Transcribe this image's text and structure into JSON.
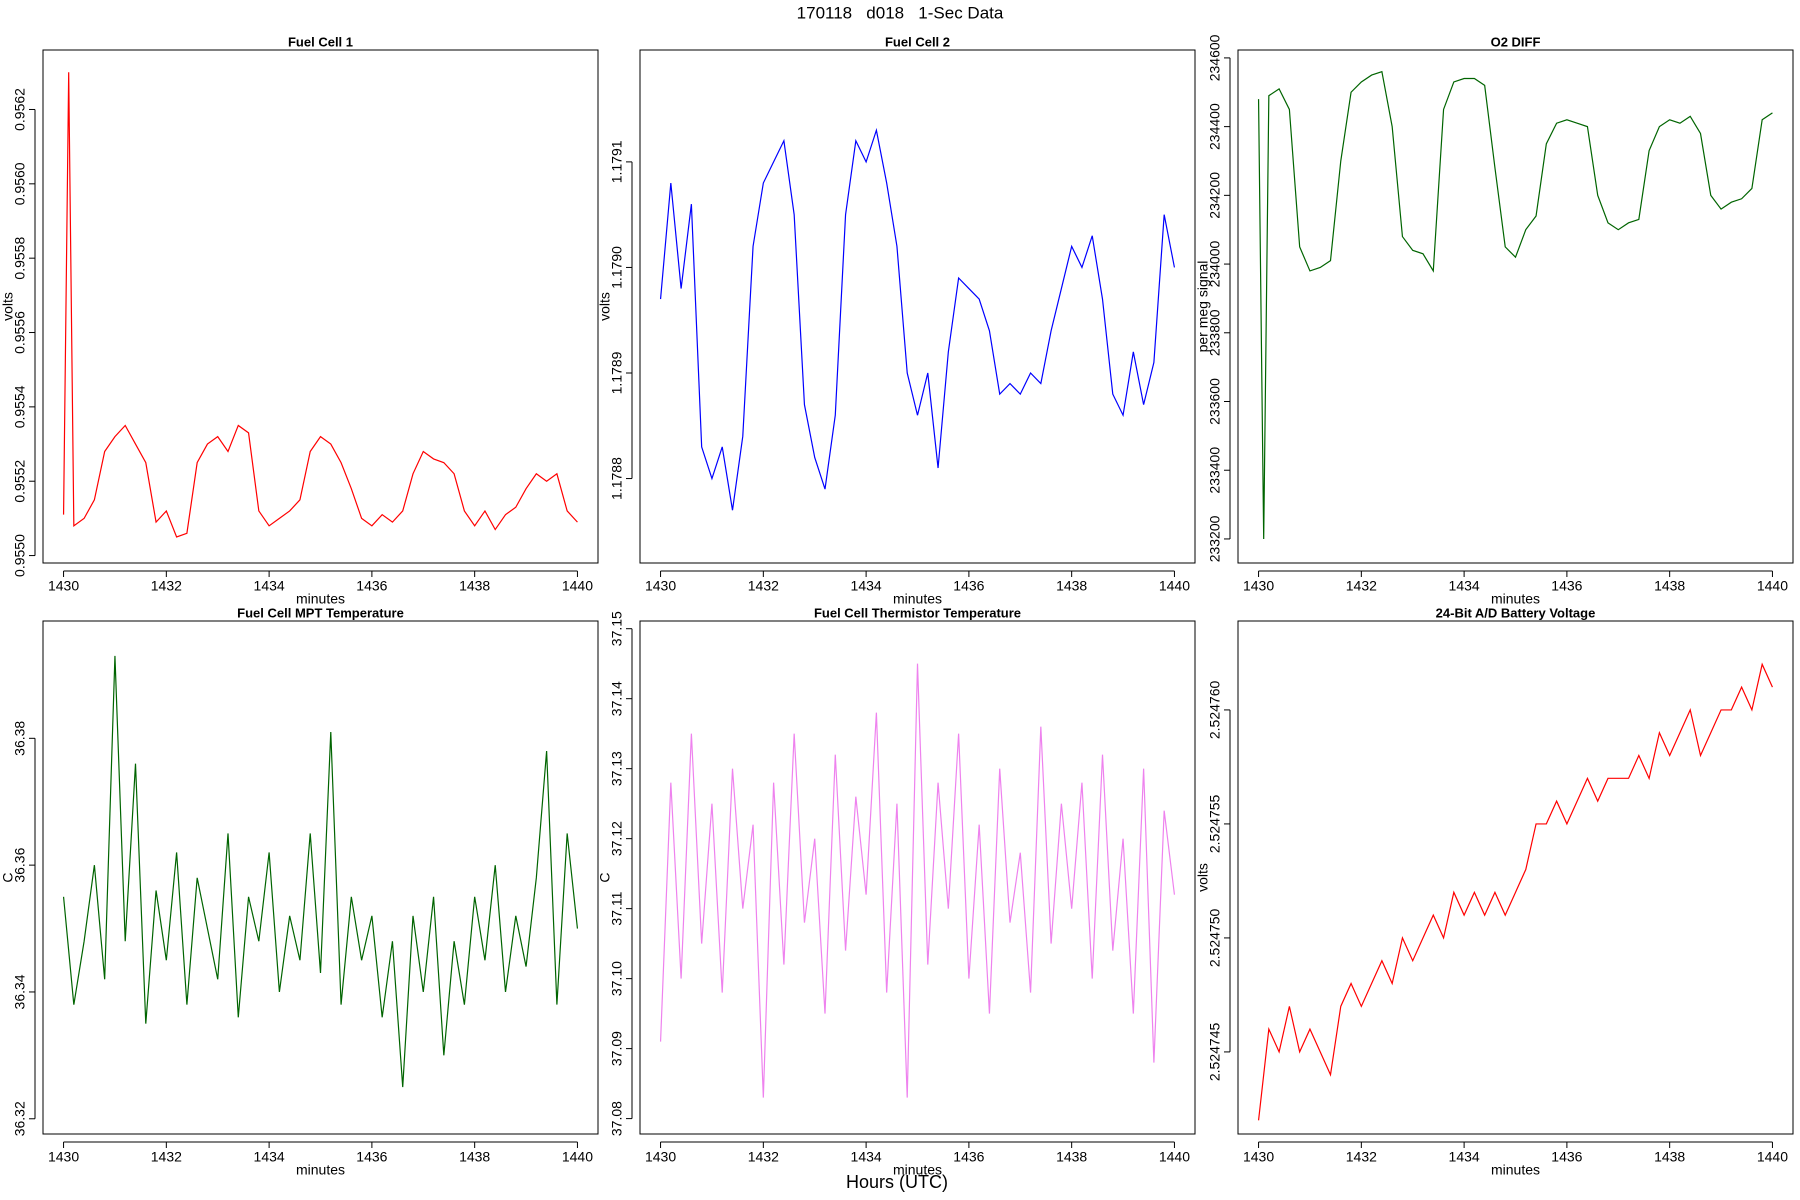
{
  "title": "170118   d018   1-Sec Data",
  "xlabel": "Hours (UTC)",
  "chart_data": [
    {
      "type": "line",
      "title": "Fuel Cell 1",
      "xlabel": "minutes",
      "ylabel": "volts",
      "color": "#ff0000",
      "xlim": [
        1429.6,
        1440.4
      ],
      "xticks": [
        1430,
        1432,
        1434,
        1436,
        1438,
        1440
      ],
      "ylim": [
        0.95498,
        0.95636
      ],
      "yticks": [
        {
          "value": 0.955,
          "label": "0.9550"
        },
        0.9552,
        0.9554,
        0.9556,
        0.9558,
        {
          "value": 0.956,
          "label": "0.9560"
        },
        0.9562
      ],
      "x": [
        1430,
        1430.1,
        1430.2,
        1430.4,
        1430.6,
        1430.8,
        1431,
        1431.2,
        1431.4,
        1431.6,
        1431.8,
        1432,
        1432.2,
        1432.4,
        1432.6,
        1432.8,
        1433,
        1433.2,
        1433.4,
        1433.6,
        1433.8,
        1434,
        1434.2,
        1434.4,
        1434.6,
        1434.8,
        1435,
        1435.2,
        1435.4,
        1435.6,
        1435.8,
        1436,
        1436.2,
        1436.4,
        1436.6,
        1436.8,
        1437,
        1437.2,
        1437.4,
        1437.6,
        1437.8,
        1438,
        1438.2,
        1438.4,
        1438.6,
        1438.8,
        1439,
        1439.2,
        1439.4,
        1439.6,
        1439.8,
        1440
      ],
      "values": [
        0.95511,
        0.9563,
        0.95508,
        0.9551,
        0.95515,
        0.95528,
        0.95532,
        0.95535,
        0.9553,
        0.95525,
        0.95509,
        0.95512,
        0.95505,
        0.95506,
        0.95525,
        0.9553,
        0.95532,
        0.95528,
        0.95535,
        0.95533,
        0.95512,
        0.95508,
        0.9551,
        0.95512,
        0.95515,
        0.95528,
        0.95532,
        0.9553,
        0.95525,
        0.95518,
        0.9551,
        0.95508,
        0.95511,
        0.95509,
        0.95512,
        0.95522,
        0.95528,
        0.95526,
        0.95525,
        0.95522,
        0.95512,
        0.95508,
        0.95512,
        0.95507,
        0.95511,
        0.95513,
        0.95518,
        0.95522,
        0.9552,
        0.95522,
        0.95512,
        0.95509
      ]
    },
    {
      "type": "line",
      "title": "Fuel Cell 2",
      "xlabel": "minutes",
      "ylabel": "volts",
      "color": "#0000ff",
      "xlim": [
        1429.6,
        1440.4
      ],
      "xticks": [
        1430,
        1432,
        1434,
        1436,
        1438,
        1440
      ],
      "ylim": [
        1.17872,
        1.179206
      ],
      "yticks": [
        1.1788,
        1.1789,
        {
          "value": 1.179,
          "label": "1.1790"
        },
        1.1791
      ],
      "x": [
        1430,
        1430.2,
        1430.4,
        1430.6,
        1430.8,
        1431,
        1431.2,
        1431.4,
        1431.6,
        1431.8,
        1432,
        1432.2,
        1432.4,
        1432.6,
        1432.8,
        1433,
        1433.2,
        1433.4,
        1433.6,
        1433.8,
        1434,
        1434.2,
        1434.4,
        1434.6,
        1434.8,
        1435,
        1435.2,
        1435.4,
        1435.6,
        1435.8,
        1436,
        1436.2,
        1436.4,
        1436.6,
        1436.8,
        1437,
        1437.2,
        1437.4,
        1437.6,
        1437.8,
        1438,
        1438.2,
        1438.4,
        1438.6,
        1438.8,
        1439,
        1439.2,
        1439.4,
        1439.6,
        1439.8,
        1440
      ],
      "values": [
        1.17897,
        1.17908,
        1.17898,
        1.17906,
        1.17883,
        1.1788,
        1.17883,
        1.17877,
        1.17884,
        1.17902,
        1.17908,
        1.1791,
        1.17912,
        1.17905,
        1.17887,
        1.17882,
        1.17879,
        1.17886,
        1.17905,
        1.17912,
        1.1791,
        1.17913,
        1.17908,
        1.17902,
        1.1789,
        1.17886,
        1.1789,
        1.17881,
        1.17892,
        1.17899,
        1.17898,
        1.17897,
        1.17894,
        1.17888,
        1.17889,
        1.17888,
        1.1789,
        1.17889,
        1.17894,
        1.17898,
        1.17902,
        1.179,
        1.17903,
        1.17897,
        1.17888,
        1.17886,
        1.17892,
        1.17887,
        1.17891,
        1.17905,
        1.179
      ]
    },
    {
      "type": "line",
      "title": "O2 DIFF",
      "xlabel": "minutes",
      "ylabel": "per meg signal",
      "color": "#006400",
      "xlim": [
        1429.6,
        1440.4
      ],
      "xticks": [
        1430,
        1432,
        1434,
        1436,
        1438,
        1440
      ],
      "ylim": [
        233130,
        234623
      ],
      "yticks": [
        233200,
        233400,
        233600,
        233800,
        234000,
        234200,
        234400,
        234600
      ],
      "x": [
        1430,
        1430.1,
        1430.2,
        1430.4,
        1430.6,
        1430.8,
        1431,
        1431.2,
        1431.4,
        1431.6,
        1431.8,
        1432,
        1432.2,
        1432.4,
        1432.6,
        1432.8,
        1433,
        1433.2,
        1433.4,
        1433.6,
        1433.8,
        1434,
        1434.2,
        1434.4,
        1434.6,
        1434.8,
        1435,
        1435.2,
        1435.4,
        1435.6,
        1435.8,
        1436,
        1436.2,
        1436.4,
        1436.6,
        1436.8,
        1437,
        1437.2,
        1437.4,
        1437.6,
        1437.8,
        1438,
        1438.2,
        1438.4,
        1438.6,
        1438.8,
        1439,
        1439.2,
        1439.4,
        1439.6,
        1439.8,
        1440
      ],
      "values": [
        234480,
        233200,
        234490,
        234510,
        234450,
        234050,
        233980,
        233990,
        234010,
        234300,
        234500,
        234530,
        234550,
        234560,
        234400,
        234080,
        234040,
        234030,
        233980,
        234450,
        234530,
        234540,
        234540,
        234520,
        234280,
        234050,
        234020,
        234100,
        234140,
        234350,
        234410,
        234420,
        234410,
        234400,
        234200,
        234120,
        234100,
        234120,
        234130,
        234330,
        234400,
        234420,
        234410,
        234430,
        234380,
        234200,
        234160,
        234180,
        234190,
        234220,
        234420,
        234440
      ]
    },
    {
      "type": "line",
      "title": "Fuel Cell MPT Temperature",
      "xlabel": "minutes",
      "ylabel": "C",
      "color": "#006400",
      "xlim": [
        1429.6,
        1440.4
      ],
      "xticks": [
        1430,
        1432,
        1434,
        1436,
        1438,
        1440
      ],
      "ylim": [
        36.3176,
        36.3985
      ],
      "yticks": [
        36.32,
        36.34,
        36.36,
        36.38
      ],
      "x": [
        1430,
        1430.2,
        1430.4,
        1430.6,
        1430.8,
        1431,
        1431.2,
        1431.4,
        1431.6,
        1431.8,
        1432,
        1432.2,
        1432.4,
        1432.6,
        1432.8,
        1433,
        1433.2,
        1433.4,
        1433.6,
        1433.8,
        1434,
        1434.2,
        1434.4,
        1434.6,
        1434.8,
        1435,
        1435.2,
        1435.4,
        1435.6,
        1435.8,
        1436,
        1436.2,
        1436.4,
        1436.6,
        1436.8,
        1437,
        1437.2,
        1437.4,
        1437.6,
        1437.8,
        1438,
        1438.2,
        1438.4,
        1438.6,
        1438.8,
        1439,
        1439.2,
        1439.4,
        1439.6,
        1439.8,
        1440
      ],
      "values": [
        36.355,
        36.338,
        36.348,
        36.36,
        36.342,
        36.393,
        36.348,
        36.376,
        36.335,
        36.356,
        36.345,
        36.362,
        36.338,
        36.358,
        36.35,
        36.342,
        36.365,
        36.336,
        36.355,
        36.348,
        36.362,
        36.34,
        36.352,
        36.345,
        36.365,
        36.343,
        36.381,
        36.338,
        36.355,
        36.345,
        36.352,
        36.336,
        36.348,
        36.325,
        36.352,
        36.34,
        36.355,
        36.33,
        36.348,
        36.338,
        36.355,
        36.345,
        36.36,
        36.34,
        36.352,
        36.344,
        36.358,
        36.378,
        36.338,
        36.365,
        36.35
      ]
    },
    {
      "type": "line",
      "title": "Fuel Cell Thermistor Temperature",
      "xlabel": "minutes",
      "ylabel": "C",
      "color": "#ee82ee",
      "xlim": [
        1429.6,
        1440.4
      ],
      "xticks": [
        1430,
        1432,
        1434,
        1436,
        1438,
        1440
      ],
      "ylim": [
        37.0778,
        37.1511
      ],
      "yticks": [
        37.08,
        37.09,
        {
          "value": 37.1,
          "label": "37.10"
        },
        37.11,
        37.12,
        37.13,
        37.14,
        37.15
      ],
      "x": [
        1430,
        1430.2,
        1430.4,
        1430.6,
        1430.8,
        1431,
        1431.2,
        1431.4,
        1431.6,
        1431.8,
        1432,
        1432.2,
        1432.4,
        1432.6,
        1432.8,
        1433,
        1433.2,
        1433.4,
        1433.6,
        1433.8,
        1434,
        1434.2,
        1434.4,
        1434.6,
        1434.8,
        1435,
        1435.2,
        1435.4,
        1435.6,
        1435.8,
        1436,
        1436.2,
        1436.4,
        1436.6,
        1436.8,
        1437,
        1437.2,
        1437.4,
        1437.6,
        1437.8,
        1438,
        1438.2,
        1438.4,
        1438.6,
        1438.8,
        1439,
        1439.2,
        1439.4,
        1439.6,
        1439.8,
        1440
      ],
      "values": [
        37.091,
        37.128,
        37.1,
        37.135,
        37.105,
        37.125,
        37.098,
        37.13,
        37.11,
        37.122,
        37.083,
        37.128,
        37.102,
        37.135,
        37.108,
        37.12,
        37.095,
        37.132,
        37.104,
        37.126,
        37.112,
        37.138,
        37.098,
        37.125,
        37.083,
        37.145,
        37.102,
        37.128,
        37.11,
        37.135,
        37.1,
        37.122,
        37.095,
        37.13,
        37.108,
        37.118,
        37.098,
        37.136,
        37.105,
        37.125,
        37.11,
        37.128,
        37.1,
        37.132,
        37.104,
        37.12,
        37.095,
        37.13,
        37.088,
        37.124,
        37.112
      ]
    },
    {
      "type": "line",
      "title": "24-Bit A/D Battery Voltage",
      "xlabel": "minutes",
      "ylabel": "volts",
      "color": "#ff0000",
      "xlim": [
        1429.6,
        1440.4
      ],
      "xticks": [
        1430,
        1432,
        1434,
        1436,
        1438,
        1440
      ],
      "ylim": [
        2.5247414,
        2.5247639
      ],
      "yticks": [
        2.524745,
        {
          "value": 2.52475,
          "label": "2.524750"
        },
        2.524755,
        {
          "value": 2.52476,
          "label": "2.524760"
        }
      ],
      "x": [
        1430,
        1430.2,
        1430.4,
        1430.6,
        1430.8,
        1431,
        1431.2,
        1431.4,
        1431.6,
        1431.8,
        1432,
        1432.2,
        1432.4,
        1432.6,
        1432.8,
        1433,
        1433.2,
        1433.4,
        1433.6,
        1433.8,
        1434,
        1434.2,
        1434.4,
        1434.6,
        1434.8,
        1435,
        1435.2,
        1435.4,
        1435.6,
        1435.8,
        1436,
        1436.2,
        1436.4,
        1436.6,
        1436.8,
        1437,
        1437.2,
        1437.4,
        1437.6,
        1437.8,
        1438,
        1438.2,
        1438.4,
        1438.6,
        1438.8,
        1439,
        1439.2,
        1439.4,
        1439.6,
        1439.8,
        1440
      ],
      "values": [
        2.524742,
        2.524746,
        2.524745,
        2.524747,
        2.524745,
        2.524746,
        2.524745,
        2.524744,
        2.524747,
        2.524748,
        2.524747,
        2.524748,
        2.524749,
        2.524748,
        2.52475,
        2.524749,
        2.52475,
        2.524751,
        2.52475,
        2.524752,
        2.524751,
        2.524752,
        2.524751,
        2.524752,
        2.524751,
        2.524752,
        2.524753,
        2.524755,
        2.524755,
        2.524756,
        2.524755,
        2.524756,
        2.524757,
        2.524756,
        2.524757,
        2.524757,
        2.524757,
        2.524758,
        2.524757,
        2.524759,
        2.524758,
        2.524759,
        2.52476,
        2.524758,
        2.524759,
        2.52476,
        2.52476,
        2.524761,
        2.52476,
        2.524762,
        2.524761
      ]
    }
  ]
}
